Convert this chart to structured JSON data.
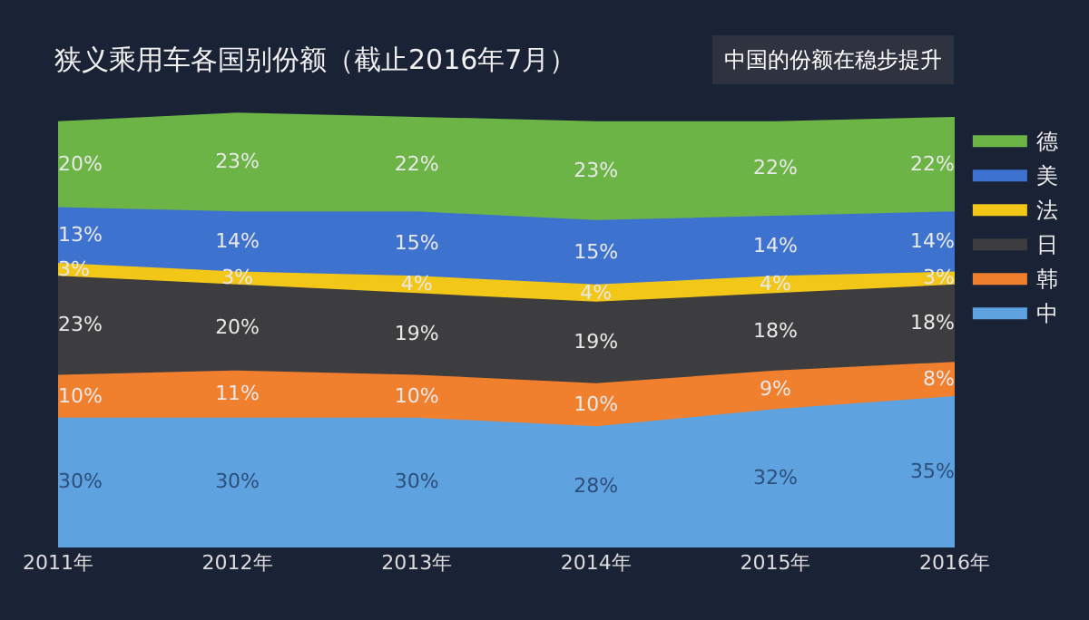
{
  "chart_data": {
    "type": "area",
    "stacked": true,
    "title": "狭义乘用车各国别份额（截止2016年7月）",
    "annotations": [
      "中国的份额在稳步提升"
    ],
    "categories": [
      "2011年",
      "2012年",
      "2013年",
      "2014年",
      "2015年",
      "2016年"
    ],
    "tick_labels": "x",
    "grid": false,
    "legend": "right",
    "series": [
      {
        "name": "中",
        "color": "#5ea2e0",
        "values": [
          30,
          30,
          30,
          28,
          32,
          35
        ],
        "value_labels": [
          "30%",
          "30%",
          "30%",
          "28%",
          "32%",
          "35%"
        ]
      },
      {
        "name": "韩",
        "color": "#f07f2e",
        "values": [
          10,
          11,
          10,
          10,
          9,
          8
        ],
        "value_labels": [
          "10%",
          "11%",
          "10%",
          "10%",
          "9%",
          "8%"
        ]
      },
      {
        "name": "日",
        "color": "#3d3d3f",
        "values": [
          23,
          20,
          19,
          19,
          18,
          18
        ],
        "value_labels": [
          "23%",
          "20%",
          "19%",
          "19%",
          "18%",
          "18%"
        ]
      },
      {
        "name": "法",
        "color": "#f2c718",
        "values": [
          3,
          3,
          4,
          4,
          4,
          3
        ],
        "value_labels": [
          "3%",
          "3%",
          "4%",
          "4%",
          "4%",
          "3%"
        ]
      },
      {
        "name": "美",
        "color": "#3d72cf",
        "values": [
          13,
          14,
          15,
          15,
          14,
          14
        ],
        "value_labels": [
          "13%",
          "14%",
          "15%",
          "15%",
          "14%",
          "14%"
        ]
      },
      {
        "name": "德",
        "color": "#6db446",
        "values": [
          20,
          23,
          22,
          23,
          22,
          22
        ],
        "value_labels": [
          "20%",
          "23%",
          "22%",
          "23%",
          "22%",
          "22%"
        ]
      }
    ]
  }
}
